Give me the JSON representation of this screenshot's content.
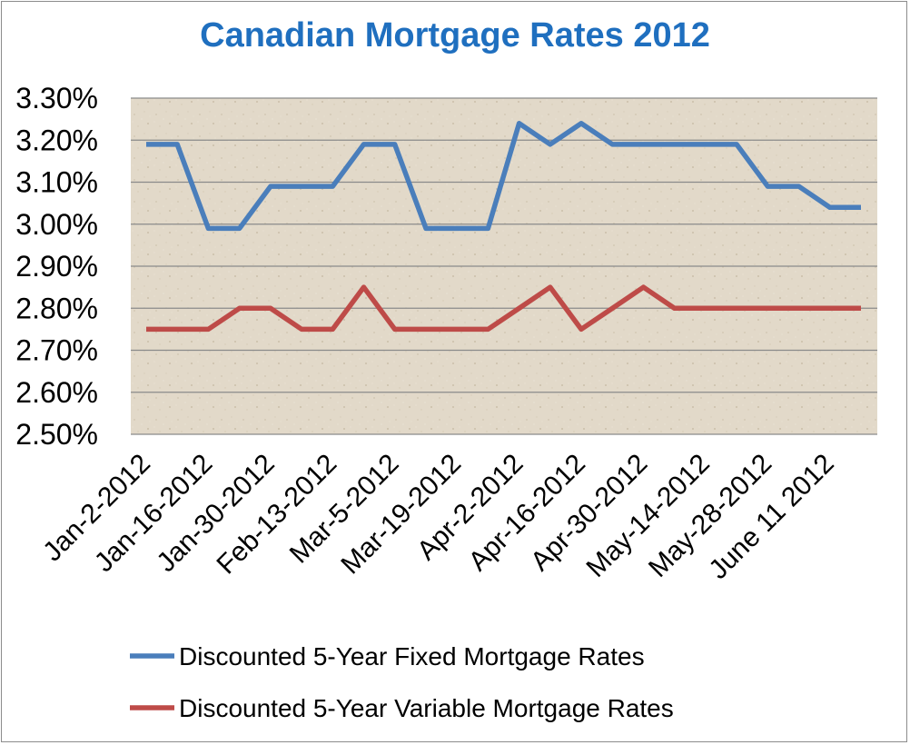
{
  "chart_data": {
    "type": "line",
    "title": "Canadian Mortgage Rates 2012",
    "xlabel": "",
    "ylabel": "",
    "ylim": [
      0.025,
      0.033
    ],
    "y_tick_labels": [
      "3.30%",
      "3.20%",
      "3.10%",
      "3.00%",
      "2.90%",
      "2.80%",
      "2.70%",
      "2.60%",
      "2.50%"
    ],
    "y_tick_values": [
      0.033,
      0.032,
      0.031,
      0.03,
      0.029,
      0.028,
      0.027,
      0.026,
      0.025
    ],
    "x_tick_labels": [
      "Jan-2-2012",
      "Jan-16-2012",
      "Jan-30-2012",
      "Feb-13-2012",
      "Mar-5-2012",
      "Mar-19-2012",
      "Apr-2-2012",
      "Apr-16-2012",
      "Apr-30-2012",
      "May-14-2012",
      "May-28-2012",
      "June 11 2012"
    ],
    "x_tick_indices": [
      0,
      2,
      4,
      6,
      8,
      10,
      12,
      14,
      16,
      18,
      20,
      22
    ],
    "point_count": 24,
    "grid": true,
    "legend_position": "bottom",
    "plot_background": "#e2d9c9",
    "series": [
      {
        "name": "Discounted 5-Year Fixed Mortgage Rates",
        "color": "#4a7ebb",
        "values": [
          0.0319,
          0.0319,
          0.0299,
          0.0299,
          0.0309,
          0.0309,
          0.0309,
          0.0319,
          0.0319,
          0.0299,
          0.0299,
          0.0299,
          0.0324,
          0.0319,
          0.0324,
          0.0319,
          0.0319,
          0.0319,
          0.0319,
          0.0319,
          0.0309,
          0.0309,
          0.0304,
          0.0304
        ]
      },
      {
        "name": "Discounted 5-Year Variable Mortgage Rates",
        "color": "#be4b48",
        "values": [
          0.0275,
          0.0275,
          0.0275,
          0.028,
          0.028,
          0.0275,
          0.0275,
          0.0285,
          0.0275,
          0.0275,
          0.0275,
          0.0275,
          0.028,
          0.0285,
          0.0275,
          0.028,
          0.0285,
          0.028,
          0.028,
          0.028,
          0.028,
          0.028,
          0.028,
          0.028
        ]
      }
    ]
  }
}
